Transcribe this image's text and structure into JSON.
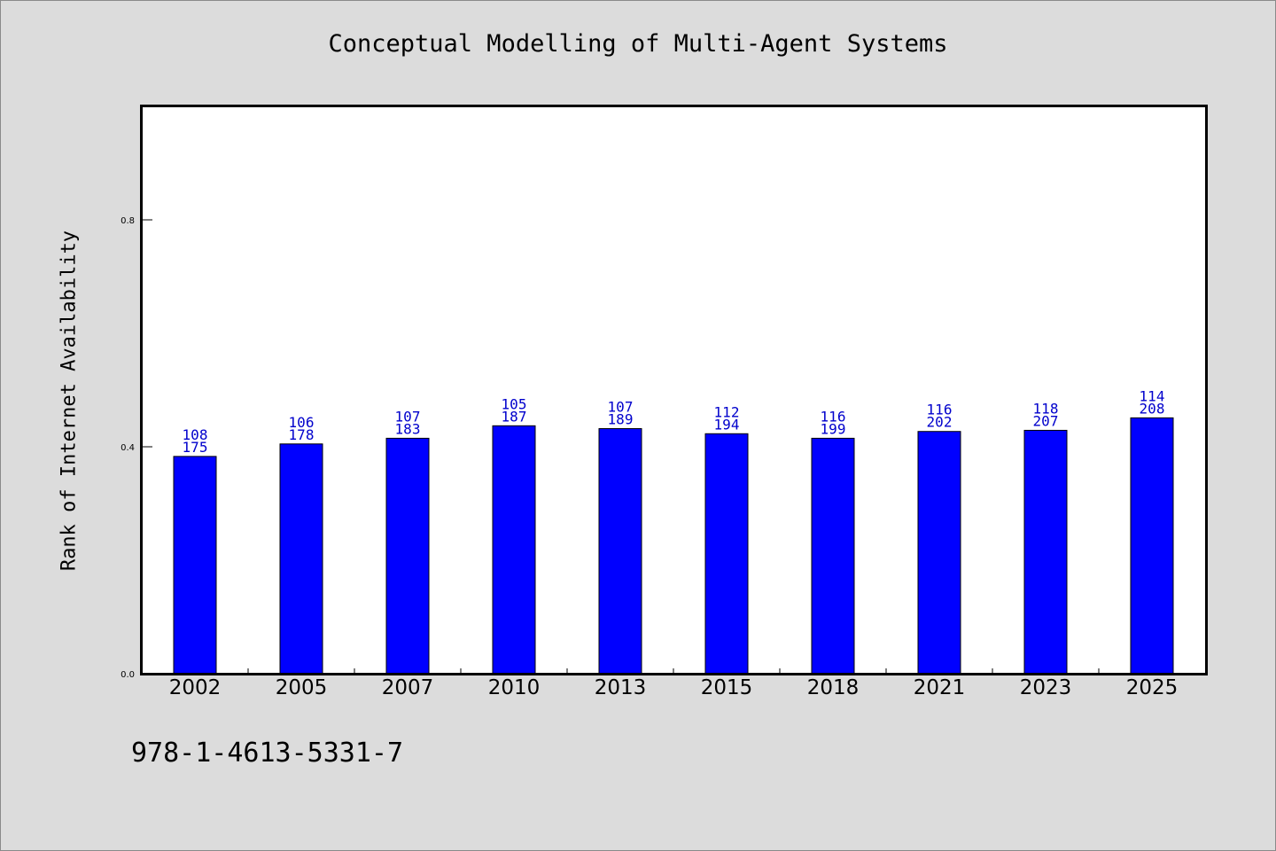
{
  "chart_data": {
    "type": "bar",
    "title": "Conceptual Modelling of Multi-Agent Systems",
    "xlabel": "",
    "ylabel": "Rank of Internet Availability",
    "categories": [
      "2002",
      "2005",
      "2007",
      "2010",
      "2013",
      "2015",
      "2018",
      "2021",
      "2023",
      "2025"
    ],
    "values": [
      0.383,
      0.405,
      0.415,
      0.437,
      0.432,
      0.423,
      0.415,
      0.427,
      0.429,
      0.451
    ],
    "label_top": [
      "108",
      "106",
      "107",
      "105",
      "107",
      "112",
      "116",
      "116",
      "118",
      "114"
    ],
    "label_bottom": [
      "175",
      "178",
      "183",
      "187",
      "189",
      "194",
      "199",
      "202",
      "207",
      "208"
    ],
    "ylim": [
      0,
      1.0
    ],
    "yticks": [
      "0.0",
      "0.4",
      "0.8"
    ],
    "yticks_values": [
      0.0,
      0.4,
      0.8
    ],
    "grid": false,
    "bar_color": "#0000ff",
    "label_color": "#0000cc"
  },
  "footer": {
    "isbn": "978-1-4613-5331-7"
  }
}
